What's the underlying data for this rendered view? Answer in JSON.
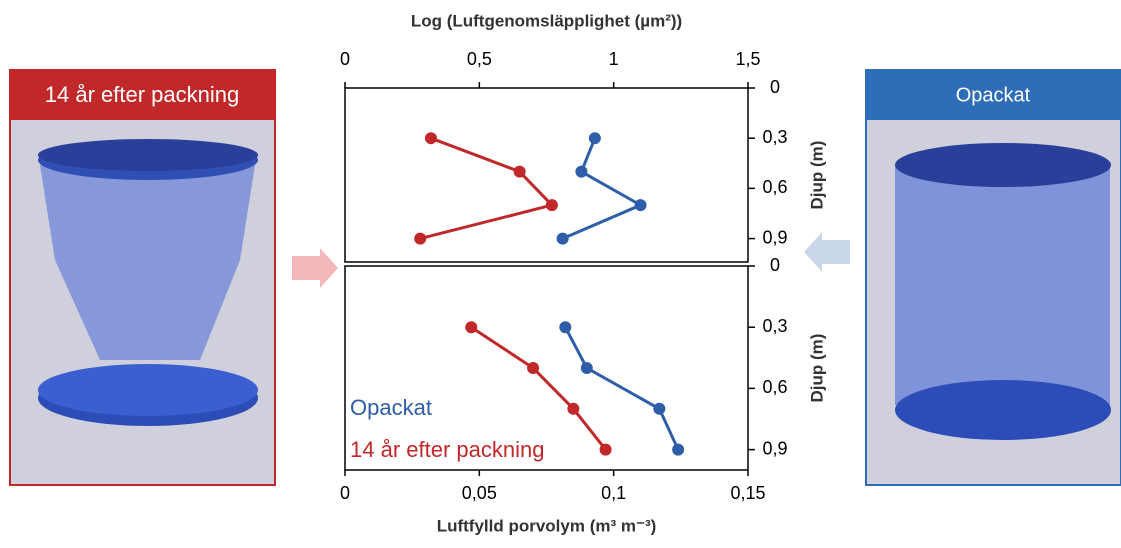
{
  "chart_data": [
    {
      "type": "line",
      "x_label": "Log (Luftgenomsläpplighet (µm²))",
      "y_label": "Djup (m)",
      "xlim": [
        0,
        1.5
      ],
      "xticks": [
        0,
        {
          "value": 0.5,
          "label": "0,5"
        },
        1,
        {
          "value": 1.5,
          "label": "1,5"
        }
      ],
      "ylim": [
        0,
        1.04
      ],
      "yticks": [
        0,
        {
          "value": 0.3,
          "label": "0,3"
        },
        {
          "value": 0.6,
          "label": "0,6"
        },
        {
          "value": 0.9,
          "label": "0,9"
        }
      ],
      "y_inverted": true,
      "series": [
        {
          "name": "Opackat",
          "color": "#2e5ea8",
          "x": [
            0.93,
            0.88,
            1.1,
            0.81
          ],
          "values": [
            0.3,
            0.5,
            0.7,
            0.9
          ]
        },
        {
          "name": "14 år efter packning",
          "color": "#c0282a",
          "x": [
            0.32,
            0.65,
            0.77,
            0.28
          ],
          "values": [
            0.3,
            0.5,
            0.7,
            0.9
          ]
        }
      ]
    },
    {
      "type": "line",
      "x_label": "Luftfylld porvolym (m³ m⁻³)",
      "y_label": "Djup (m)",
      "xlim": [
        0,
        0.15
      ],
      "xticks": [
        0,
        {
          "value": 0.05,
          "label": "0,05"
        },
        {
          "value": 0.1,
          "label": "0,1"
        },
        {
          "value": 0.15,
          "label": "0,15"
        }
      ],
      "ylim": [
        0,
        1
      ],
      "yticks": [
        0,
        {
          "value": 0.3,
          "label": "0,3"
        },
        {
          "value": 0.6,
          "label": "0,6"
        },
        {
          "value": 0.9,
          "label": "0,9"
        }
      ],
      "y_inverted": true,
      "legend": "lower left",
      "series": [
        {
          "name": "Opackat",
          "color": "#2e5ea8",
          "x": [
            0.082,
            0.09,
            0.117,
            0.124
          ],
          "values": [
            0.3,
            0.5,
            0.7,
            0.9
          ]
        },
        {
          "name": "14 år efter packning",
          "color": "#c0282a",
          "x": [
            0.047,
            0.07,
            0.085,
            0.097
          ],
          "values": [
            0.3,
            0.5,
            0.7,
            0.9
          ]
        }
      ]
    }
  ]
}
